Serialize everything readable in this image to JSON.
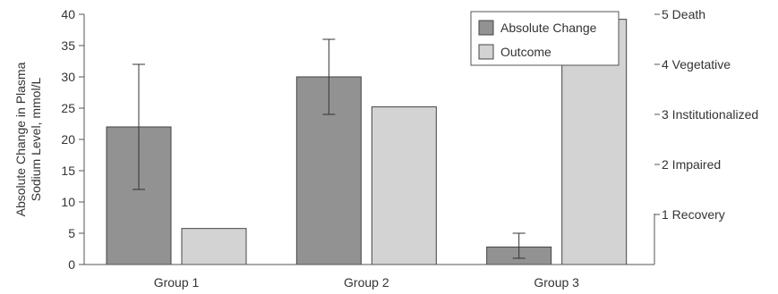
{
  "chart_data": {
    "type": "bar",
    "categories": [
      "Group 1",
      "Group 2",
      "Group 3"
    ],
    "series": [
      {
        "name": "Absolute Change",
        "axis": "left",
        "color": "#929292",
        "values": [
          22,
          30,
          2.8
        ],
        "error_low": [
          12,
          24,
          1
        ],
        "error_high": [
          32,
          36,
          5
        ]
      },
      {
        "name": "Outcome",
        "axis": "right",
        "color": "#d3d3d3",
        "values": [
          0.72,
          3.15,
          4.9
        ]
      }
    ],
    "ylabel": [
      "Absolute Change in Plasma",
      "Sodium Level, mmol/L"
    ],
    "ylim": [
      0,
      40
    ],
    "yticks": [
      "0",
      "5",
      "10",
      "15",
      "20",
      "25",
      "30",
      "35",
      "40"
    ],
    "y2lim": [
      0.0,
      5.0
    ],
    "y2ticks": [
      {
        "value": 1,
        "label": "1 Recovery"
      },
      {
        "value": 2,
        "label": "2 Impaired"
      },
      {
        "value": 3,
        "label": "3 Institutionalized"
      },
      {
        "value": 4,
        "label": "4 Vegetative"
      },
      {
        "value": 5,
        "label": "5 Death"
      }
    ],
    "legend_position": "top-right",
    "grid": false
  }
}
